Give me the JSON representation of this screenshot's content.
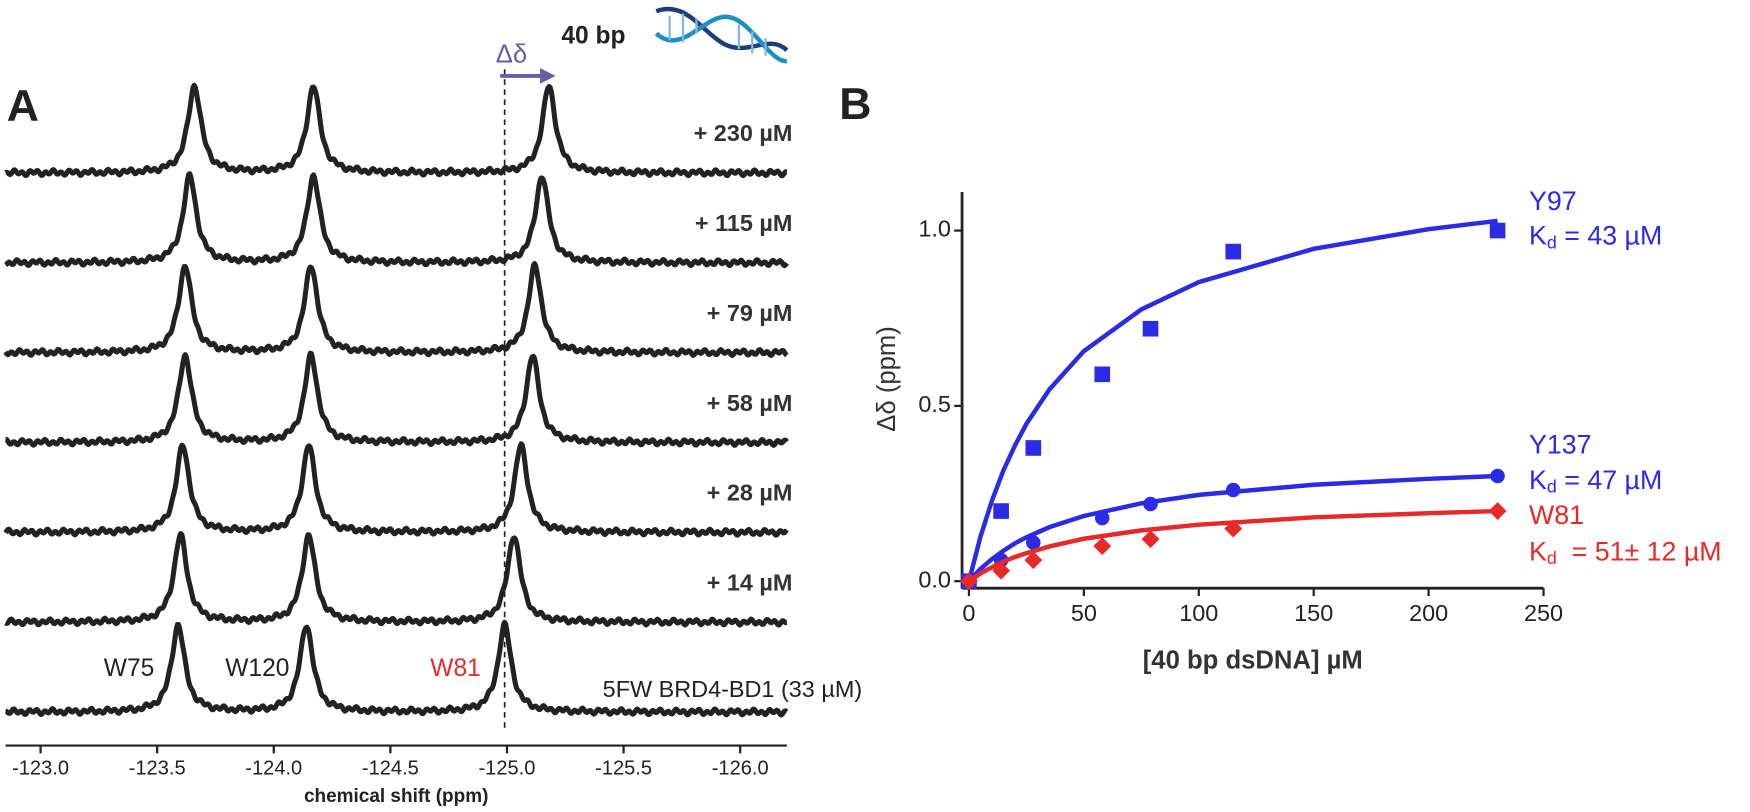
{
  "chart_data": [
    {
      "type": "spectrum",
      "panel": "A",
      "color": "#222222",
      "xlabel": "chemical shift (ppm)",
      "xlim": [
        -122.85,
        -126.2
      ],
      "xticks": [
        {
          "value": -123,
          "label": "-123.0"
        },
        -123.5,
        {
          "value": -124,
          "label": "-124.0"
        },
        -124.5,
        {
          "value": -125,
          "label": "-125.0"
        },
        -125.5,
        {
          "value": -126,
          "label": "-126.0"
        }
      ],
      "series": [
        {
          "name": "5FW BRD4-BD1 (33 µM)",
          "peaks": [
            -123.59,
            -124.14,
            -124.99
          ]
        },
        {
          "name": "+ 14 µM",
          "peaks": [
            -123.6,
            -124.15,
            -125.03
          ]
        },
        {
          "name": "+ 28 µM",
          "peaks": [
            -123.61,
            -124.15,
            -125.06
          ]
        },
        {
          "name": "+ 58 µM",
          "peaks": [
            -123.62,
            -124.16,
            -125.11
          ]
        },
        {
          "name": "+ 79 µM",
          "peaks": [
            -123.62,
            -124.16,
            -125.12
          ]
        },
        {
          "name": "+ 115 µM",
          "peaks": [
            -123.64,
            -124.17,
            -125.15
          ]
        },
        {
          "name": "+ 230 µM",
          "peaks": [
            -123.66,
            -124.17,
            -125.18
          ]
        }
      ],
      "peak_labels": [
        {
          "text": "W75",
          "color": "#222222"
        },
        {
          "text": "W120",
          "color": "#222222"
        },
        {
          "text": "W81",
          "color": "#e62a2a"
        }
      ],
      "shift_label": "Δδ",
      "shift_color": "#6b5ca5",
      "dna_label": "40 bp"
    },
    {
      "type": "scatter",
      "panel": "B",
      "xlabel": "[40 bp dsDNA] µM",
      "ylabel": "Δδ (ppm)",
      "xlim": [
        -3,
        250
      ],
      "ylim": [
        -0.02,
        1.11
      ],
      "xticks": [
        0,
        50,
        100,
        150,
        200,
        250
      ],
      "yticks": [
        {
          "value": 0,
          "label": "0.0"
        },
        0.5,
        {
          "value": 1,
          "label": "1.0"
        }
      ],
      "x": [
        0,
        14,
        28,
        58,
        79,
        115,
        230
      ],
      "fit_x": [
        0,
        5,
        10,
        15,
        20,
        25,
        35,
        50,
        75,
        100,
        150,
        200,
        230
      ],
      "series": [
        {
          "name": "Y97",
          "color": "#2b2be6",
          "marker": "square",
          "kd": {
            "symbol": "K",
            "sub": "d",
            "text": " = 43 µM"
          },
          "values": [
            0,
            0.2,
            0.38,
            0.59,
            0.72,
            0.94,
            1.0
          ],
          "fit_values": [
            0,
            0.127,
            0.23,
            0.316,
            0.387,
            0.449,
            0.547,
            0.656,
            0.775,
            0.853,
            0.948,
            1.004,
            1.028
          ]
        },
        {
          "name": "Y137",
          "color": "#2b2be6",
          "marker": "circle",
          "kd": {
            "symbol": "K",
            "sub": "d",
            "text": " = 47 µM"
          },
          "values": [
            0,
            0.06,
            0.11,
            0.18,
            0.22,
            0.26,
            0.3
          ],
          "fit_values": [
            0,
            0.035,
            0.063,
            0.087,
            0.108,
            0.125,
            0.154,
            0.186,
            0.222,
            0.246,
            0.275,
            0.292,
            0.3
          ]
        },
        {
          "name": "W81",
          "color": "#e62a2a",
          "marker": "diamond",
          "kd": {
            "symbol": "K",
            "sub": "d",
            "text": "  = 51± 12 µM"
          },
          "values": [
            0,
            0.03,
            0.06,
            0.1,
            0.12,
            0.15,
            0.2
          ],
          "fit_values": [
            0,
            0.022,
            0.04,
            0.056,
            0.069,
            0.08,
            0.099,
            0.121,
            0.145,
            0.161,
            0.182,
            0.194,
            0.2
          ]
        }
      ]
    }
  ]
}
